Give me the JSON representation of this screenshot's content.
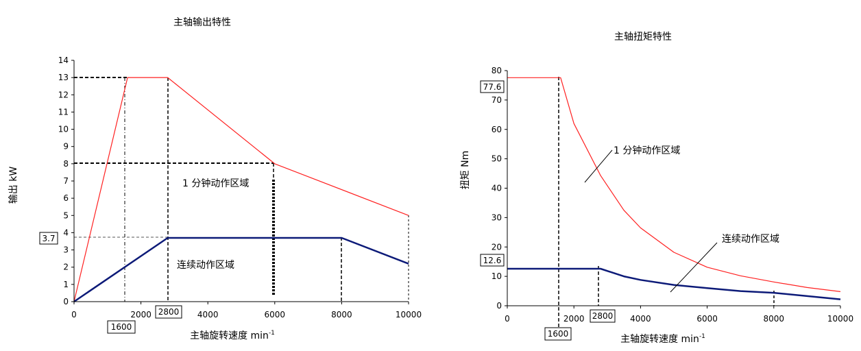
{
  "chart_data": [
    {
      "type": "line",
      "title": "主轴输出特性",
      "xlabel": "主轴旋转速度",
      "xunit": "min",
      "xunit_sup": "-1",
      "ylabel": "输出 kW",
      "xlim": [
        0,
        10000
      ],
      "ylim": [
        0,
        14
      ],
      "xticks": [
        "0",
        "2000",
        "4000",
        "6000",
        "8000",
        "10000"
      ],
      "yticks": [
        "0",
        "1",
        "2",
        "3",
        "4",
        "5",
        "6",
        "7",
        "8",
        "9",
        "10",
        "11",
        "12",
        "13",
        "14"
      ],
      "grid": false,
      "series": [
        {
          "color": "#ff2020",
          "x": [
            0,
            1600,
            2800,
            6000,
            10000
          ],
          "y": [
            0,
            13,
            13,
            8,
            5
          ]
        },
        {
          "color": "#0c1a78",
          "x": [
            0,
            2800,
            8000,
            10000
          ],
          "y": [
            0,
            3.7,
            3.7,
            2.2
          ]
        }
      ],
      "boxed_labels": [
        "3.7",
        "1600",
        "2800"
      ],
      "region_labels": [
        "1 分钟动作区域",
        "连续动作区域"
      ]
    },
    {
      "type": "line",
      "title": "主轴扭矩特性",
      "xlabel": "主轴旋转速度",
      "xunit": "min",
      "xunit_sup": "-1",
      "ylabel": "扭矩 Nm",
      "xlim": [
        0,
        10000
      ],
      "ylim": [
        0,
        80
      ],
      "xticks": [
        "0",
        "2000",
        "4000",
        "6000",
        "8000",
        "10000"
      ],
      "yticks": [
        "0",
        "10",
        "20",
        "30",
        "40",
        "50",
        "60",
        "70",
        "80"
      ],
      "grid": false,
      "series": [
        {
          "color": "#ff2020",
          "x": [
            0,
            1600,
            2000,
            2800,
            3500,
            4000,
            5000,
            6000,
            7000,
            8000,
            9000,
            10000
          ],
          "y": [
            77.6,
            77.6,
            62,
            44.3,
            32.5,
            26.5,
            18.2,
            13.1,
            10.2,
            8.1,
            6.2,
            4.8
          ]
        },
        {
          "color": "#0c1a78",
          "x": [
            0,
            2800,
            3500,
            4000,
            5000,
            6000,
            7000,
            8000,
            10000
          ],
          "y": [
            12.6,
            12.6,
            10,
            8.8,
            7.1,
            6,
            5,
            4.4,
            2.2
          ]
        }
      ],
      "boxed_labels": [
        "77.6",
        "12.6",
        "1600",
        "2800"
      ],
      "region_labels": [
        "1 分钟动作区域",
        "连续动作区域"
      ]
    }
  ]
}
